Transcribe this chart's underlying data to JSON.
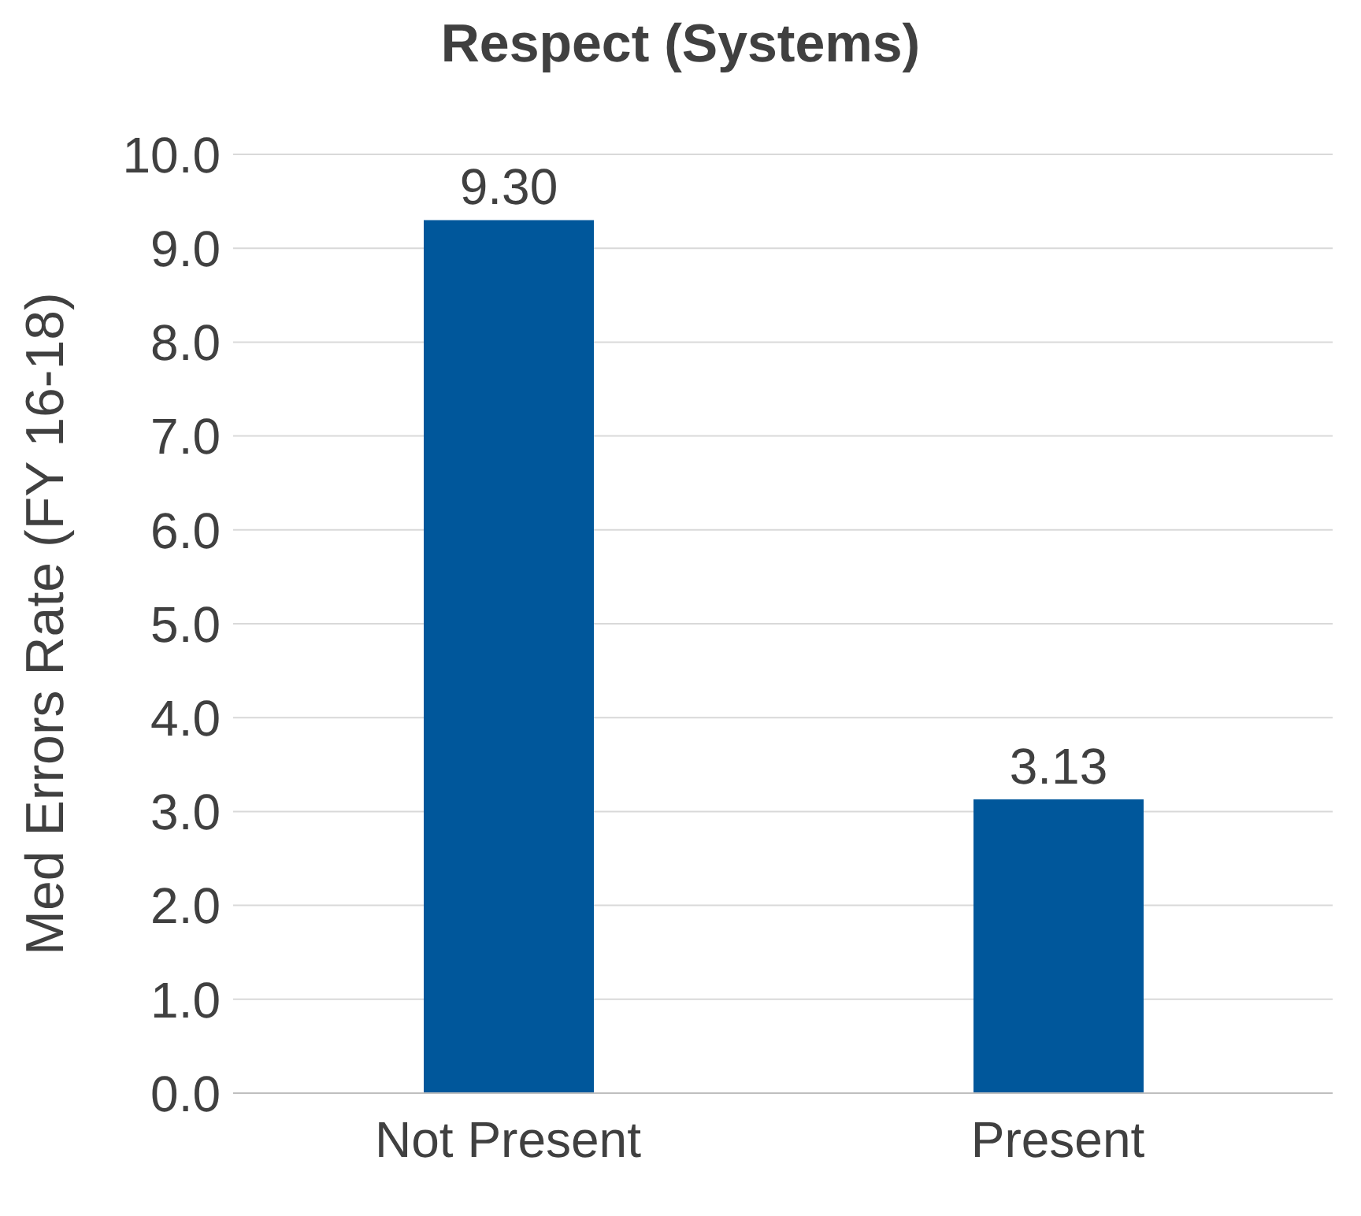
{
  "chart_data": {
    "type": "bar",
    "title": "Respect (Systems)",
    "ylabel": "Med Errors Rate (FY 16-18)",
    "categories": [
      "Not Present",
      "Present"
    ],
    "values": [
      9.3,
      3.13
    ],
    "value_labels": [
      "9.30",
      "3.13"
    ],
    "color": "#00579b",
    "ylim": [
      0,
      10
    ],
    "yticks": [
      {
        "value": 0,
        "label": "0.0"
      },
      {
        "value": 1,
        "label": "1.0"
      },
      {
        "value": 2,
        "label": "2.0"
      },
      {
        "value": 3,
        "label": "3.0"
      },
      {
        "value": 4,
        "label": "4.0"
      },
      {
        "value": 5,
        "label": "5.0"
      },
      {
        "value": 6,
        "label": "6.0"
      },
      {
        "value": 7,
        "label": "7.0"
      },
      {
        "value": 8,
        "label": "8.0"
      },
      {
        "value": 9,
        "label": "9.0"
      },
      {
        "value": 10,
        "label": "10.0"
      }
    ],
    "grid": "y"
  }
}
